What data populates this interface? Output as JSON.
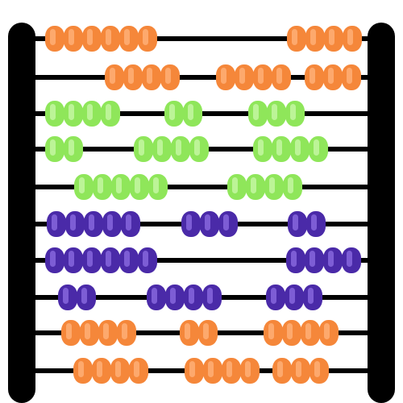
{
  "abacus": {
    "frame_color": "#000000",
    "rod_color": "#000000",
    "palette": {
      "orange": {
        "fill": "#f5873a",
        "shine": "#ffb27a"
      },
      "green": {
        "fill": "#8fe65a",
        "shine": "#c7f7a6"
      },
      "purple": {
        "fill": "#4a2aa8",
        "shine": "#8a6ae0"
      }
    },
    "rods": [
      {
        "color": "orange",
        "groups": [
          6,
          4
        ]
      },
      {
        "color": "orange",
        "groups": [
          4,
          4,
          3
        ]
      },
      {
        "color": "green",
        "groups": [
          4,
          2,
          3
        ]
      },
      {
        "color": "green",
        "groups": [
          2,
          4,
          4
        ]
      },
      {
        "color": "green",
        "groups": [
          5,
          4
        ]
      },
      {
        "color": "purple",
        "groups": [
          5,
          3,
          2
        ]
      },
      {
        "color": "purple",
        "groups": [
          6,
          4
        ]
      },
      {
        "color": "purple",
        "groups": [
          2,
          4,
          3
        ]
      },
      {
        "color": "orange",
        "groups": [
          4,
          2,
          4
        ]
      },
      {
        "color": "orange",
        "groups": [
          4,
          4,
          3
        ]
      }
    ]
  }
}
